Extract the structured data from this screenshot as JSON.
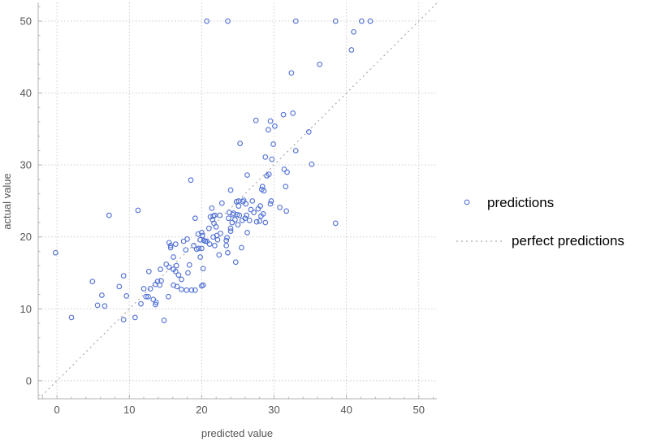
{
  "chart_data": {
    "type": "scatter",
    "title": "",
    "xlabel": "predicted value",
    "ylabel": "actual value",
    "xlim": [
      -2.6,
      52.5
    ],
    "ylim": [
      -2.5,
      52.6
    ],
    "xticks": [
      0,
      10,
      20,
      30,
      40,
      50
    ],
    "yticks": [
      0,
      10,
      20,
      30,
      40,
      50
    ],
    "grid": true,
    "legend_position": "right",
    "colors": {
      "points": "#4f6fd4",
      "perfect_line": "#aaaaaa",
      "grid": "#cccccc",
      "axis": "#b3b3b3"
    },
    "series": [
      {
        "name": "predictions",
        "marker": "open-circle",
        "points": [
          [
            -0.2,
            17.8
          ],
          [
            2.0,
            8.8
          ],
          [
            4.9,
            13.8
          ],
          [
            5.6,
            10.5
          ],
          [
            6.2,
            11.9
          ],
          [
            6.6,
            10.4
          ],
          [
            7.2,
            23.0
          ],
          [
            8.6,
            13.1
          ],
          [
            9.2,
            14.6
          ],
          [
            9.2,
            8.5
          ],
          [
            9.6,
            11.8
          ],
          [
            10.8,
            8.8
          ],
          [
            11.2,
            23.7
          ],
          [
            11.6,
            10.7
          ],
          [
            12.0,
            12.8
          ],
          [
            12.3,
            11.7
          ],
          [
            12.6,
            11.7
          ],
          [
            12.9,
            12.8
          ],
          [
            12.7,
            15.2
          ],
          [
            13.3,
            11.3
          ],
          [
            13.6,
            10.6
          ],
          [
            13.7,
            10.9
          ],
          [
            13.6,
            13.4
          ],
          [
            13.9,
            13.8
          ],
          [
            14.2,
            13.3
          ],
          [
            14.3,
            15.5
          ],
          [
            14.4,
            13.9
          ],
          [
            14.8,
            8.4
          ],
          [
            15.1,
            16.2
          ],
          [
            15.4,
            11.7
          ],
          [
            15.5,
            19.2
          ],
          [
            15.5,
            15.8
          ],
          [
            15.7,
            18.8
          ],
          [
            15.7,
            18.5
          ],
          [
            16.1,
            13.3
          ],
          [
            16.1,
            15.5
          ],
          [
            16.1,
            17.2
          ],
          [
            16.4,
            19.0
          ],
          [
            16.4,
            15.2
          ],
          [
            16.5,
            16.0
          ],
          [
            16.6,
            13.1
          ],
          [
            16.8,
            14.7
          ],
          [
            17.2,
            12.7
          ],
          [
            17.2,
            14.1
          ],
          [
            17.5,
            19.4
          ],
          [
            17.8,
            18.2
          ],
          [
            17.9,
            12.6
          ],
          [
            18.0,
            19.7
          ],
          [
            18.1,
            15.0
          ],
          [
            18.3,
            16.1
          ],
          [
            18.5,
            27.9
          ],
          [
            18.6,
            12.6
          ],
          [
            18.9,
            18.8
          ],
          [
            19.1,
            12.6
          ],
          [
            19.1,
            22.6
          ],
          [
            19.3,
            18.3
          ],
          [
            19.5,
            20.4
          ],
          [
            19.6,
            18.4
          ],
          [
            19.8,
            19.6
          ],
          [
            19.8,
            17.2
          ],
          [
            20.0,
            20.6
          ],
          [
            20.0,
            13.2
          ],
          [
            20.0,
            18.4
          ],
          [
            20.1,
            20.2
          ],
          [
            20.2,
            13.3
          ],
          [
            20.2,
            15.6
          ],
          [
            20.3,
            19.5
          ],
          [
            20.5,
            19.4
          ],
          [
            20.7,
            19.4
          ],
          [
            21.0,
            21.2
          ],
          [
            21.1,
            19.0
          ],
          [
            21.2,
            22.8
          ],
          [
            21.4,
            24.0
          ],
          [
            21.5,
            22.4
          ],
          [
            21.6,
            20.0
          ],
          [
            21.6,
            22.9
          ],
          [
            21.7,
            21.9
          ],
          [
            21.8,
            23.0
          ],
          [
            21.8,
            18.8
          ],
          [
            22.0,
            21.4
          ],
          [
            22.1,
            20.2
          ],
          [
            22.2,
            19.6
          ],
          [
            22.4,
            17.5
          ],
          [
            22.5,
            23.0
          ],
          [
            22.6,
            20.5
          ],
          [
            22.8,
            24.7
          ],
          [
            23.4,
            18.8
          ],
          [
            23.4,
            19.5
          ],
          [
            23.5,
            19.9
          ],
          [
            23.6,
            17.8
          ],
          [
            23.7,
            22.6
          ],
          [
            23.8,
            23.4
          ],
          [
            24.0,
            26.5
          ],
          [
            24.0,
            21.2
          ],
          [
            24.0,
            20.8
          ],
          [
            24.2,
            22.0
          ],
          [
            24.3,
            23.1
          ],
          [
            24.4,
            23.3
          ],
          [
            24.6,
            22.4
          ],
          [
            24.7,
            16.5
          ],
          [
            24.8,
            24.9
          ],
          [
            24.9,
            23.1
          ],
          [
            25.0,
            21.7
          ],
          [
            25.1,
            24.3
          ],
          [
            25.1,
            25.0
          ],
          [
            25.2,
            23.0
          ],
          [
            25.3,
            33.0
          ],
          [
            25.5,
            18.5
          ],
          [
            25.6,
            22.3
          ],
          [
            25.7,
            24.9
          ],
          [
            25.8,
            25.1
          ],
          [
            26.0,
            22.6
          ],
          [
            26.1,
            24.6
          ],
          [
            26.2,
            23.0
          ],
          [
            26.3,
            20.6
          ],
          [
            26.3,
            28.6
          ],
          [
            26.6,
            22.3
          ],
          [
            26.8,
            23.8
          ],
          [
            27.0,
            25.0
          ],
          [
            27.2,
            23.4
          ],
          [
            27.5,
            36.2
          ],
          [
            27.6,
            22.1
          ],
          [
            27.8,
            23.9
          ],
          [
            28.0,
            22.2
          ],
          [
            28.1,
            24.3
          ],
          [
            28.2,
            22.9
          ],
          [
            28.3,
            26.6
          ],
          [
            28.4,
            27.0
          ],
          [
            28.5,
            23.2
          ],
          [
            28.6,
            26.4
          ],
          [
            28.8,
            22.0
          ],
          [
            28.8,
            31.1
          ],
          [
            29.0,
            28.5
          ],
          [
            29.2,
            34.9
          ],
          [
            29.3,
            28.7
          ],
          [
            29.5,
            36.1
          ],
          [
            29.5,
            24.6
          ],
          [
            29.6,
            25.0
          ],
          [
            29.7,
            30.8
          ],
          [
            29.9,
            32.9
          ],
          [
            30.1,
            35.4
          ],
          [
            30.8,
            24.1
          ],
          [
            31.3,
            37.0
          ],
          [
            31.4,
            29.4
          ],
          [
            31.6,
            27.0
          ],
          [
            31.7,
            23.6
          ],
          [
            31.8,
            29.0
          ],
          [
            32.4,
            42.8
          ],
          [
            32.6,
            37.2
          ],
          [
            33.0,
            32.0
          ],
          [
            33.0,
            50.0
          ],
          [
            34.8,
            34.6
          ],
          [
            35.2,
            30.1
          ],
          [
            36.3,
            44.0
          ],
          [
            38.5,
            50.0
          ],
          [
            38.5,
            21.9
          ],
          [
            40.7,
            46.0
          ],
          [
            41.0,
            48.5
          ],
          [
            42.1,
            50.0
          ],
          [
            43.3,
            50.0
          ],
          [
            20.7,
            50.0
          ],
          [
            23.6,
            50.0
          ]
        ]
      },
      {
        "name": "perfect predictions",
        "style": "dotted-line",
        "points": [
          [
            -2.6,
            -2.6
          ],
          [
            52.5,
            52.5
          ]
        ]
      }
    ]
  }
}
